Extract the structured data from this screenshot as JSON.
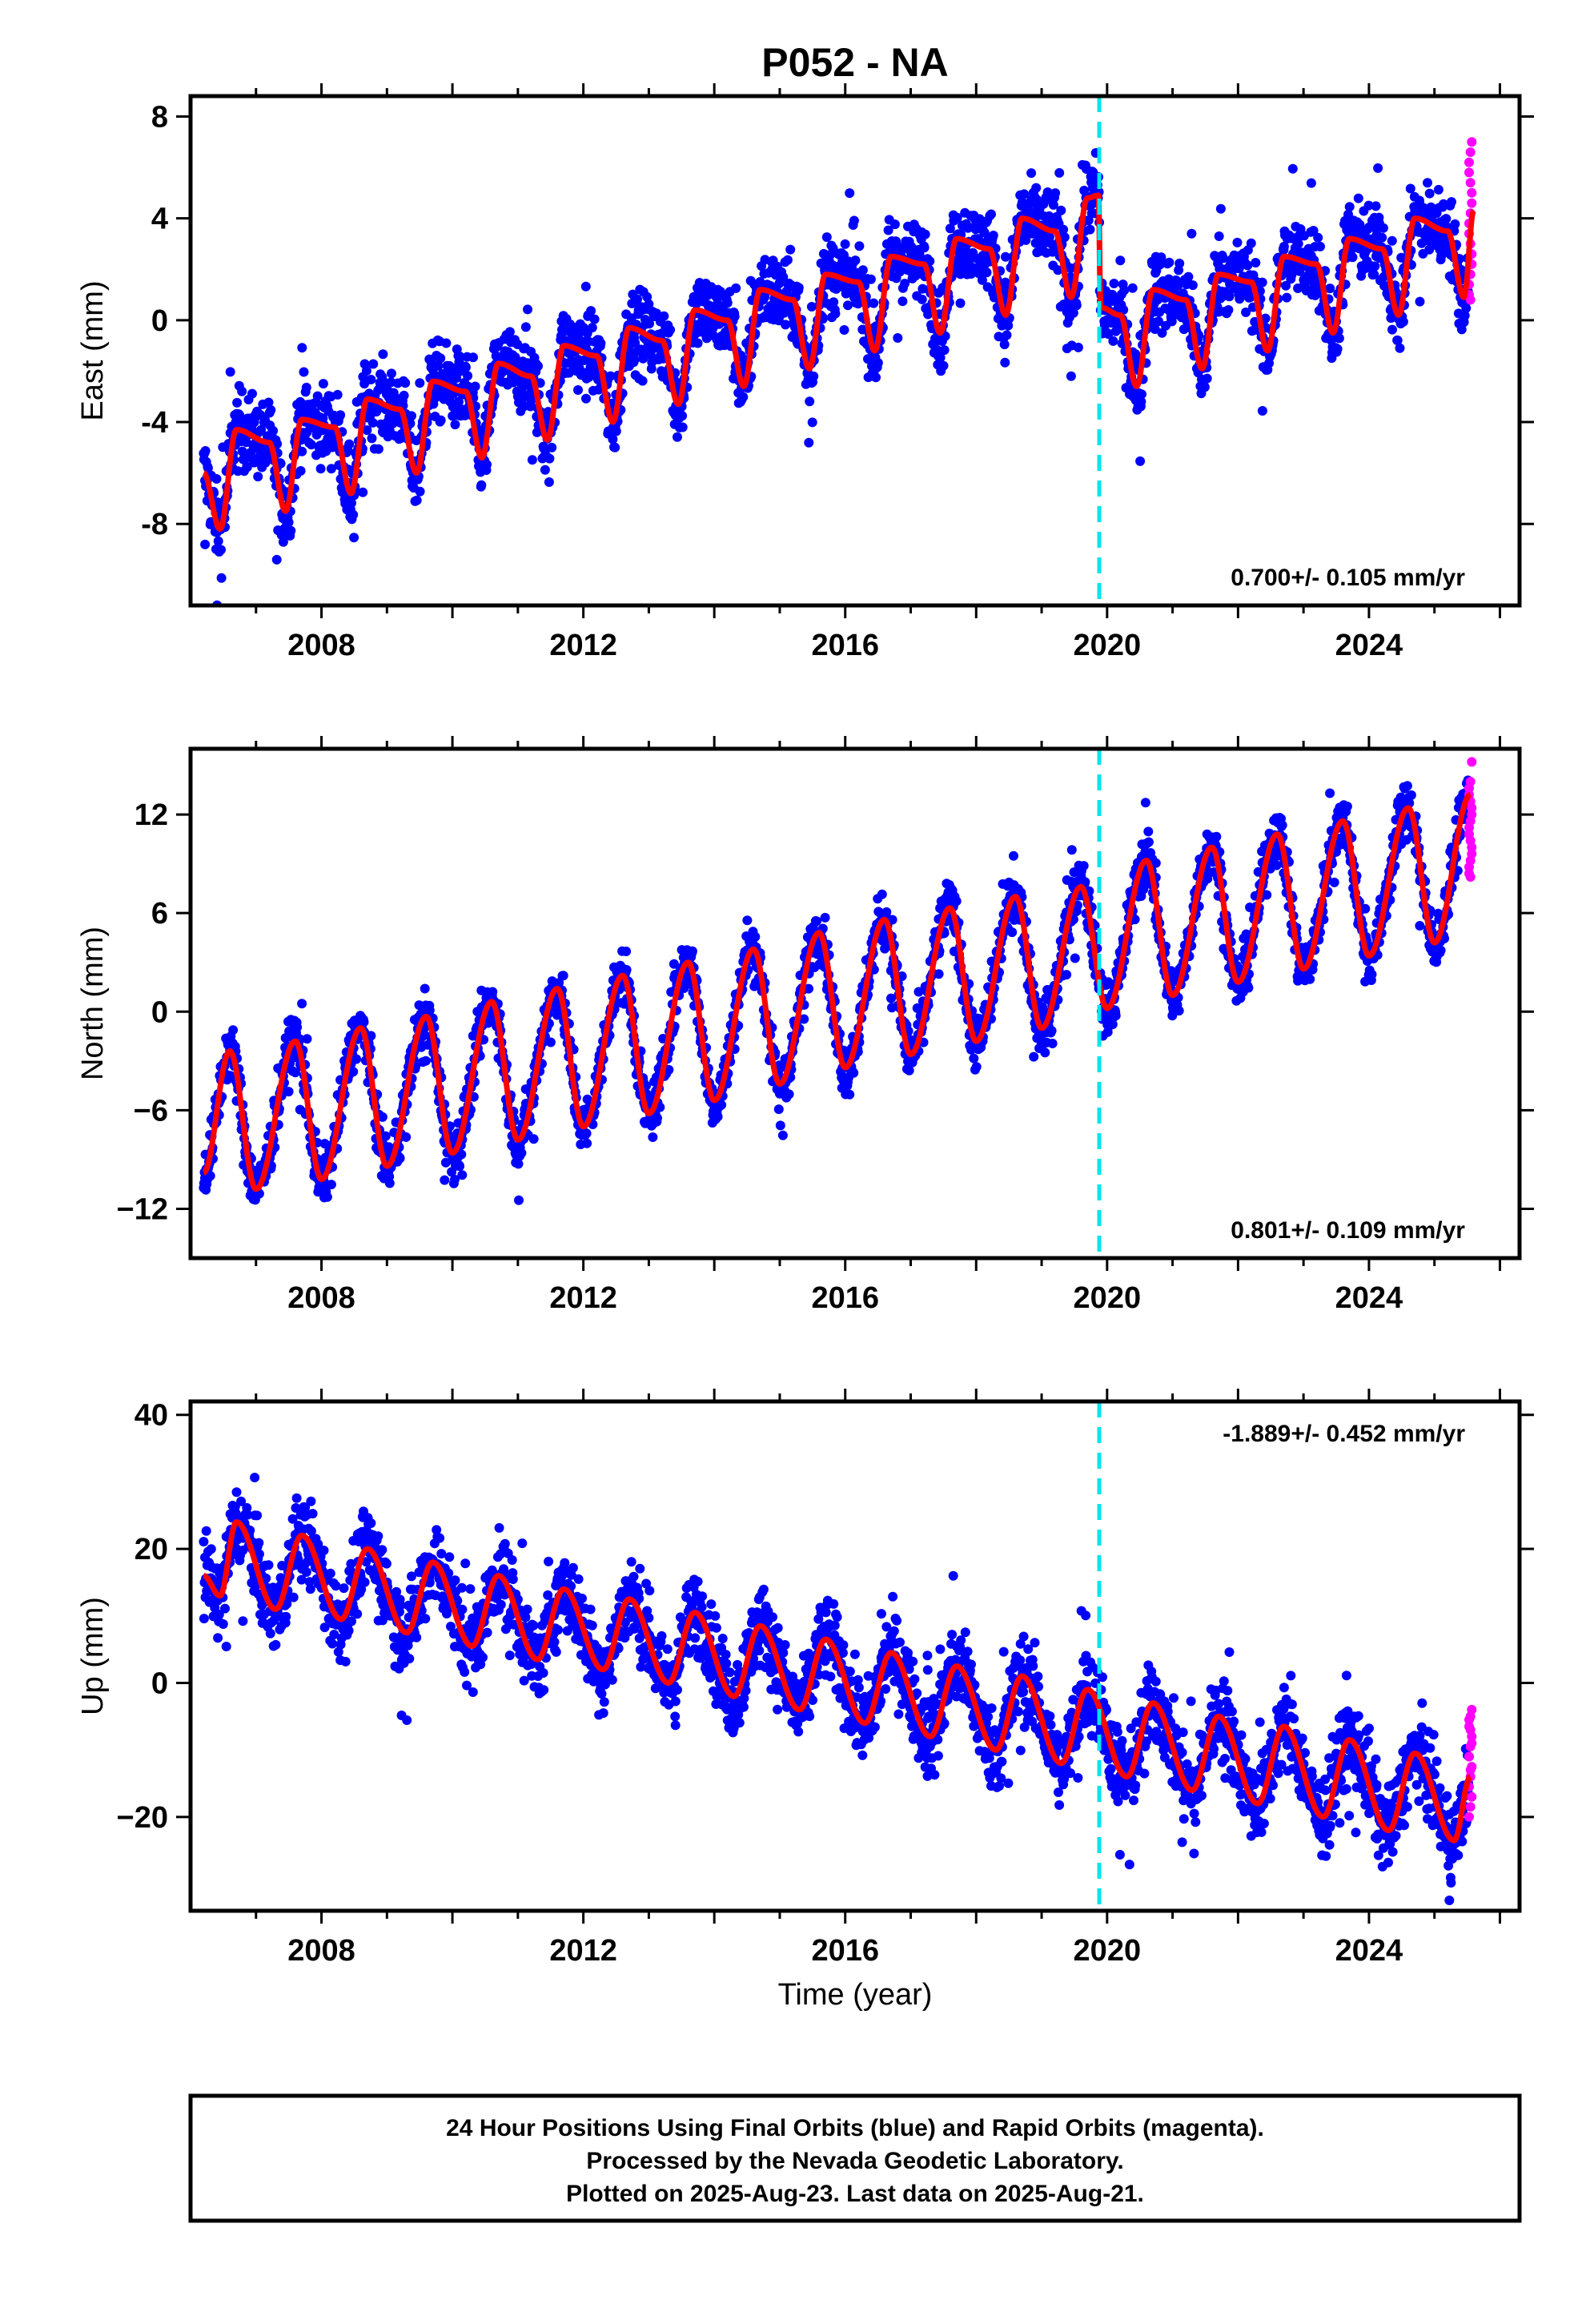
{
  "chart_data": {
    "title": "P052 - NA",
    "type": "scatter",
    "xlabel": "Time (year)",
    "xlim": [
      2006.0,
      2026.3
    ],
    "xticks": [
      2008,
      2012,
      2016,
      2020,
      2024
    ],
    "xtick_labels": [
      "2008",
      "2012",
      "2016",
      "2020",
      "2024"
    ],
    "event_line_x": 2019.88,
    "colors": {
      "final": "#0000ff",
      "rapid": "#ff00ff",
      "model": "#ff0000",
      "event": "#00e5ee"
    },
    "panels": [
      {
        "id": "east",
        "ylabel": "East (mm)",
        "ylim": [
          -11.2,
          8.8
        ],
        "yticks": [
          -8,
          -4,
          0,
          4,
          8
        ],
        "ytick_labels": [
          "-8",
          "-4",
          "0",
          "4",
          "8"
        ],
        "rate": "0.700+/- 0.105 mm/yr",
        "rate_position": "bottom-right",
        "model_knots_x": [
          2006.2,
          2006.45,
          2006.7,
          2007.2,
          2007.45,
          2007.7,
          2008.2,
          2008.45,
          2008.7,
          2009.2,
          2009.45,
          2009.7,
          2010.2,
          2010.45,
          2010.7,
          2011.2,
          2011.45,
          2011.7,
          2012.2,
          2012.45,
          2012.7,
          2013.2,
          2013.45,
          2013.7,
          2014.2,
          2014.45,
          2014.7,
          2015.2,
          2015.45,
          2015.7,
          2016.2,
          2016.45,
          2016.7,
          2017.2,
          2017.45,
          2017.7,
          2018.2,
          2018.45,
          2018.7,
          2019.2,
          2019.45,
          2019.7,
          2019.87,
          2019.9,
          2020.2,
          2020.45,
          2020.7,
          2021.2,
          2021.45,
          2021.7,
          2022.2,
          2022.45,
          2022.7,
          2023.2,
          2023.45,
          2023.7,
          2024.2,
          2024.45,
          2024.7,
          2025.2,
          2025.45,
          2025.6
        ],
        "model_knots_y": [
          -6.0,
          -8.2,
          -4.3,
          -4.8,
          -7.5,
          -3.9,
          -4.2,
          -6.8,
          -3.1,
          -3.5,
          -6.0,
          -2.4,
          -2.8,
          -5.4,
          -1.7,
          -2.2,
          -4.7,
          -1.0,
          -1.4,
          -4.0,
          -0.3,
          -0.8,
          -3.3,
          0.4,
          0.0,
          -2.6,
          1.2,
          0.8,
          -1.9,
          1.8,
          1.5,
          -1.2,
          2.5,
          2.2,
          -0.5,
          3.2,
          2.8,
          0.2,
          4.0,
          3.5,
          0.9,
          4.8,
          4.9,
          0.5,
          0.2,
          -2.6,
          1.2,
          0.8,
          -1.9,
          1.8,
          1.5,
          -1.2,
          2.5,
          2.2,
          -0.5,
          3.2,
          2.8,
          0.2,
          4.0,
          3.5,
          0.9,
          4.3
        ],
        "noise_final": 1.4,
        "rapid_values": [
          1.0,
          1.8,
          2.6,
          3.4,
          4.2,
          5.0,
          5.8,
          6.6,
          7.0,
          6.2,
          5.4,
          4.6,
          3.8,
          3.0,
          2.2,
          1.4,
          0.8
        ]
      },
      {
        "id": "north",
        "ylabel": "North (mm)",
        "ylim": [
          -15,
          16
        ],
        "yticks": [
          -12,
          -6,
          0,
          6,
          12
        ],
        "ytick_labels": [
          "−12",
          "−6",
          "0",
          "6",
          "12"
        ],
        "rate": "0.801+/- 0.109 mm/yr",
        "rate_position": "bottom-right",
        "model_knots_x": [
          2006.2,
          2006.6,
          2007.0,
          2007.6,
          2008.0,
          2008.6,
          2009.0,
          2009.6,
          2010.0,
          2010.6,
          2011.0,
          2011.6,
          2012.0,
          2012.6,
          2013.0,
          2013.6,
          2014.0,
          2014.6,
          2015.0,
          2015.6,
          2016.0,
          2016.6,
          2017.0,
          2017.6,
          2018.0,
          2018.6,
          2019.0,
          2019.6,
          2020.0,
          2020.6,
          2021.0,
          2021.6,
          2022.0,
          2022.6,
          2023.0,
          2023.6,
          2024.0,
          2024.6,
          2025.0,
          2025.55
        ],
        "model_knots_y": [
          -9.8,
          -2.4,
          -10.8,
          -1.8,
          -10.2,
          -1.0,
          -9.4,
          -0.3,
          -8.6,
          0.6,
          -7.8,
          1.4,
          -7.0,
          2.2,
          -6.2,
          3.0,
          -5.4,
          3.8,
          -4.4,
          4.8,
          -3.4,
          5.6,
          -2.6,
          6.3,
          -1.8,
          7.0,
          -1.0,
          7.6,
          0.2,
          9.2,
          1.0,
          10.0,
          1.8,
          10.8,
          2.6,
          11.6,
          3.4,
          12.4,
          4.2,
          13.2
        ],
        "noise_final": 1.5,
        "rapid_values": [
          8.4,
          9.2,
          10.0,
          10.8,
          11.6,
          12.4,
          13.2,
          14.0,
          15.2,
          13.6,
          12.8,
          12.0,
          11.2,
          10.4,
          9.6,
          8.8,
          8.2
        ]
      },
      {
        "id": "up",
        "ylabel": "Up (mm)",
        "ylim": [
          -34,
          42
        ],
        "yticks": [
          -20,
          0,
          20,
          40
        ],
        "ytick_labels": [
          "−20",
          "0",
          "20",
          "40"
        ],
        "rate": "-1.889+/- 0.452 mm/yr",
        "rate_position": "top-right",
        "model_knots_x": [
          2006.2,
          2006.45,
          2006.7,
          2007.3,
          2007.7,
          2008.3,
          2008.7,
          2009.3,
          2009.7,
          2010.3,
          2010.7,
          2011.3,
          2011.7,
          2012.3,
          2012.7,
          2013.3,
          2013.7,
          2014.3,
          2014.7,
          2015.3,
          2015.7,
          2016.3,
          2016.7,
          2017.3,
          2017.7,
          2018.3,
          2018.7,
          2019.3,
          2019.7,
          2020.3,
          2020.7,
          2021.3,
          2021.7,
          2022.3,
          2022.7,
          2023.3,
          2023.7,
          2024.3,
          2024.7,
          2025.3,
          2025.55
        ],
        "model_knots_y": [
          16.0,
          13.0,
          24.0,
          11.0,
          22.0,
          9.5,
          20.0,
          7.5,
          18.0,
          5.5,
          16.0,
          3.5,
          14.0,
          2.0,
          12.5,
          0.0,
          10.5,
          -2.0,
          8.5,
          -4.0,
          6.5,
          -6.0,
          4.5,
          -8.0,
          2.5,
          -10.0,
          1.0,
          -12.0,
          -1.0,
          -14.0,
          -3.0,
          -16.0,
          -5.0,
          -18.0,
          -6.5,
          -20.0,
          -8.5,
          -22.0,
          -10.5,
          -23.5,
          -14.0
        ],
        "noise_final": 5.5,
        "rapid_values": [
          -20.0,
          -18.5,
          -17.0,
          -15.5,
          -14.0,
          -12.5,
          -11.0,
          -9.5,
          -8.0,
          -6.5,
          -5.0,
          -4.0,
          -5.5,
          -7.0,
          -9.0,
          -11.0,
          -13.0
        ]
      }
    ]
  },
  "footer": {
    "line1": "24 Hour Positions Using Final Orbits (blue) and Rapid Orbits (magenta).",
    "line2": "Processed by the Nevada Geodetic Laboratory.",
    "line3": "Plotted on 2025-Aug-23. Last data on 2025-Aug-21."
  }
}
